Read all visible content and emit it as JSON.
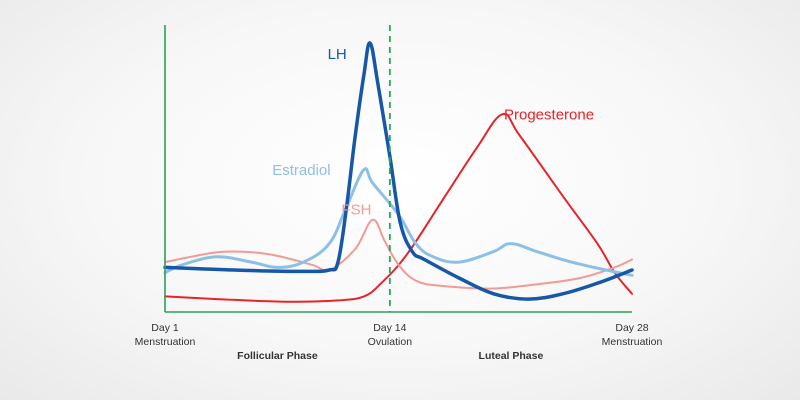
{
  "chart_data": {
    "type": "line",
    "title": "",
    "xlabel": "",
    "ylabel": "",
    "xlim": [
      1,
      28
    ],
    "ylim": [
      0,
      100
    ],
    "grid": false,
    "x_ticks": [
      {
        "x": 1,
        "lines": [
          "Day 1",
          "Menstruation"
        ]
      },
      {
        "x": 14,
        "lines": [
          "Day 14",
          "Ovulation"
        ]
      },
      {
        "x": 28,
        "lines": [
          "Day 28",
          "Menstruation"
        ]
      }
    ],
    "phases": [
      {
        "label": "Follicular Phase",
        "x": 7.5
      },
      {
        "label": "Luteal Phase",
        "x": 21
      }
    ],
    "annotations": [
      {
        "type": "vertical-dashed-line",
        "x": 14,
        "color": "#22aa55"
      }
    ],
    "series": [
      {
        "name": "Progesterone",
        "color": "#e8232a",
        "stroke_width": 2,
        "label": {
          "x": 20.6,
          "y": 71
        },
        "points": [
          [
            1,
            4
          ],
          [
            4,
            3
          ],
          [
            8,
            2
          ],
          [
            11,
            2.5
          ],
          [
            12.5,
            4
          ],
          [
            13.5,
            9
          ],
          [
            15,
            20
          ],
          [
            17,
            40
          ],
          [
            19,
            60
          ],
          [
            20.5,
            73
          ],
          [
            21.5,
            65
          ],
          [
            24,
            42
          ],
          [
            26,
            24
          ],
          [
            27,
            13
          ],
          [
            28,
            5
          ]
        ]
      },
      {
        "name": "FSH",
        "color": "#f29a95",
        "stroke_width": 2,
        "label": {
          "x": 11.2,
          "y": 35
        },
        "points": [
          [
            1,
            17
          ],
          [
            2.5,
            19
          ],
          [
            4.5,
            21
          ],
          [
            7,
            20
          ],
          [
            9.5,
            16
          ],
          [
            10.5,
            14
          ],
          [
            12,
            22
          ],
          [
            13,
            33
          ],
          [
            13.7,
            25
          ],
          [
            14.5,
            16
          ],
          [
            15.5,
            10
          ],
          [
            17,
            8
          ],
          [
            20,
            7
          ],
          [
            23,
            9
          ],
          [
            25,
            11
          ],
          [
            27,
            15
          ],
          [
            28,
            18
          ]
        ]
      },
      {
        "name": "Estradiol",
        "color": "#8dc0e6",
        "stroke_width": 3,
        "label": {
          "x": 7.2,
          "y": 50
        },
        "points": [
          [
            1,
            13
          ],
          [
            2,
            16
          ],
          [
            4,
            19
          ],
          [
            6,
            17
          ],
          [
            7.5,
            15
          ],
          [
            9,
            17
          ],
          [
            10.5,
            24
          ],
          [
            11.5,
            38
          ],
          [
            12.5,
            52
          ],
          [
            13,
            47
          ],
          [
            14.5,
            35
          ],
          [
            15.5,
            24
          ],
          [
            16.5,
            19
          ],
          [
            18,
            17
          ],
          [
            20,
            21
          ],
          [
            21,
            24
          ],
          [
            22.5,
            21
          ],
          [
            24.5,
            17
          ],
          [
            26.5,
            14
          ],
          [
            28,
            12
          ]
        ]
      },
      {
        "name": "LH",
        "color": "#1657a8",
        "stroke_width": 3.5,
        "label": {
          "x": 10.4,
          "y": 94
        },
        "points": [
          [
            1,
            15
          ],
          [
            5,
            14
          ],
          [
            9,
            13.5
          ],
          [
            10.5,
            14
          ],
          [
            11,
            17
          ],
          [
            11.5,
            38
          ],
          [
            12,
            65
          ],
          [
            12.5,
            88
          ],
          [
            12.85,
            100
          ],
          [
            13.3,
            85
          ],
          [
            14,
            57
          ],
          [
            14.6,
            32
          ],
          [
            15.3,
            21
          ],
          [
            16,
            18
          ],
          [
            18,
            11
          ],
          [
            20,
            5
          ],
          [
            22,
            3
          ],
          [
            24,
            5
          ],
          [
            26,
            9
          ],
          [
            28,
            14
          ]
        ]
      }
    ]
  }
}
